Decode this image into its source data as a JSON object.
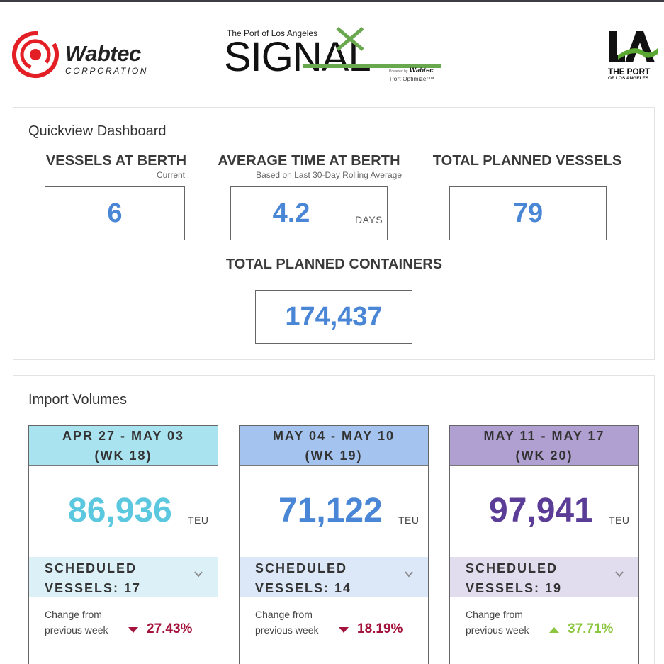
{
  "header": {
    "wabtec": {
      "name": "Wabtec",
      "sub": "CORPORATION"
    },
    "signal": {
      "top": "The Port of Los Angeles",
      "word": "SIGNAL",
      "powered": "Wabtec",
      "optimizer": "Port Optimizer™",
      "powered_prefix": "Powered by"
    },
    "la": {
      "line1": "THE PORT",
      "line2": "OF LOS ANGELES"
    }
  },
  "quickview": {
    "title": "Quickview Dashboard",
    "vessels_at_berth": {
      "label": "VESSELS AT BERTH",
      "sub": "Current",
      "value": "6"
    },
    "avg_time": {
      "label": "AVERAGE TIME AT BERTH",
      "sub": "Based on Last 30-Day Rolling Average",
      "value": "4.2",
      "unit": "DAYS"
    },
    "total_vessels": {
      "label": "TOTAL PLANNED VESSELS",
      "value": "79"
    },
    "total_containers": {
      "label": "TOTAL PLANNED CONTAINERS",
      "value": "174,437"
    }
  },
  "imports": {
    "title": "Import Volumes",
    "cards": [
      {
        "range": "APR 27 - MAY 03",
        "week": "(WK 18)",
        "value": "86,936",
        "unit": "TEU",
        "sched1": "SCHEDULED",
        "sched2": "VESSELS: 17",
        "change_label": "Change from previous week",
        "change": "27.43%",
        "direction": "down",
        "head_color": "#a9e3ef",
        "sched_color": "#dcf1f7",
        "value_color": "#5bc8df"
      },
      {
        "range": "MAY 04 - MAY 10",
        "week": "(WK 19)",
        "value": "71,122",
        "unit": "TEU",
        "sched1": "SCHEDULED",
        "sched2": "VESSELS: 14",
        "change_label": "Change from previous week",
        "change": "18.19%",
        "direction": "down",
        "head_color": "#a4c3ef",
        "sched_color": "#dce7f7",
        "value_color": "#4a86d6"
      },
      {
        "range": "MAY 11 - MAY 17",
        "week": "(WK 20)",
        "value": "97,941",
        "unit": "TEU",
        "sched1": "SCHEDULED",
        "sched2": "VESSELS: 19",
        "change_label": "Change from previous week",
        "change": "37.71%",
        "direction": "up",
        "head_color": "#b0a0d2",
        "sched_color": "#e2dcef",
        "value_color": "#5b3c96"
      }
    ]
  },
  "colors": {
    "down": "#a3133b",
    "up": "#8cc63f",
    "accent": "#4a86d6",
    "signal_green": "#6aa84f",
    "wabtec_red": "#e31e24"
  }
}
